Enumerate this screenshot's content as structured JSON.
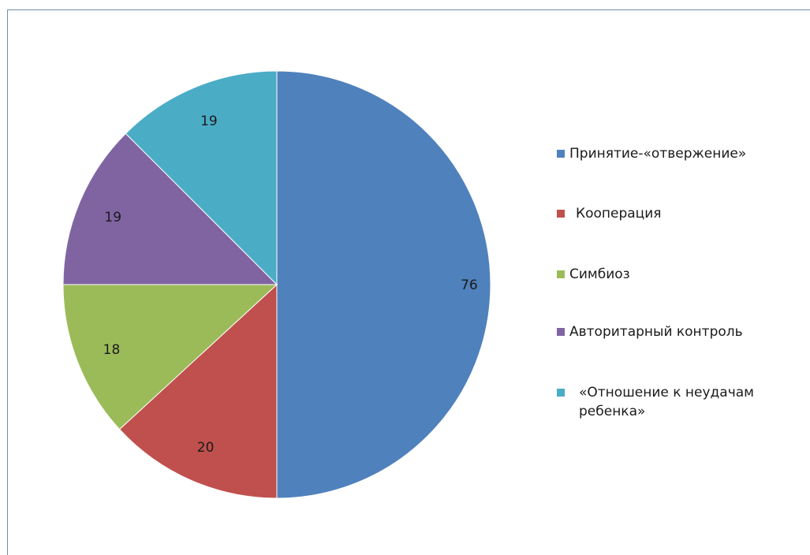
{
  "chart_data": {
    "type": "pie",
    "categories": [
      "Принятие-«отвержение»",
      "Кооперация",
      "Симбиоз",
      "Авторитарный контроль",
      "«Отношение к неудачам ребенка»"
    ],
    "values": [
      76,
      20,
      18,
      19,
      19
    ],
    "data_labels": [
      "76",
      "20",
      "18",
      "19",
      "19"
    ],
    "colors": [
      "#4f81bd",
      "#c0504d",
      "#9bbb59",
      "#8064a2",
      "#4bacc6"
    ],
    "legend_placement": "right",
    "start_angle": "top, clockwise"
  }
}
